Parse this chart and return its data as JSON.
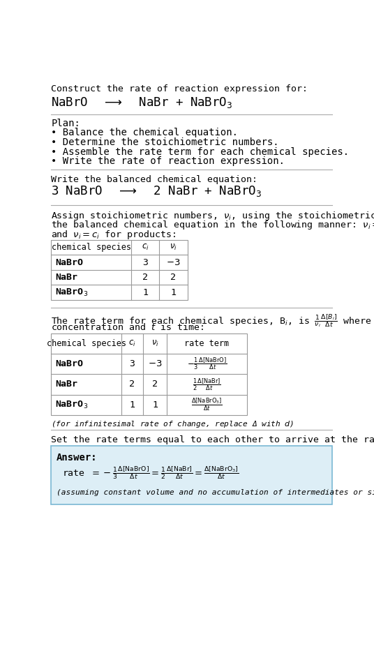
{
  "bg_color": "#ffffff",
  "title_line1": "Construct the rate of reaction expression for:",
  "plan_header": "Plan:",
  "plan_bullets": [
    "• Balance the chemical equation.",
    "• Determine the stoichiometric numbers.",
    "• Assemble the rate term for each chemical species.",
    "• Write the rate of reaction expression."
  ],
  "balanced_header": "Write the balanced chemical equation:",
  "stoich_intro_parts": [
    "Assign stoichiometric numbers, $\\nu_i$, using the stoichiometric coefficients, $c_i$, from",
    "the balanced chemical equation in the following manner: $\\nu_i = -c_i$ for reactants",
    "and $\\nu_i = c_i$ for products:"
  ],
  "table1_headers": [
    "chemical species",
    "$c_i$",
    "$\\nu_i$"
  ],
  "table1_col1_italic": [
    false,
    true,
    true
  ],
  "table1_rows": [
    [
      "NaBrO",
      "3",
      "$-3$"
    ],
    [
      "NaBr",
      "2",
      "2"
    ],
    [
      "NaBrO$_3$",
      "1",
      "1"
    ]
  ],
  "rate_intro_parts": [
    "The rate term for each chemical species, B$_i$, is $\\frac{1}{\\nu_i}\\frac{\\Delta[B_i]}{\\Delta t}$ where [B$_i$] is the amount",
    "concentration and $t$ is time:"
  ],
  "table2_headers": [
    "chemical species",
    "$c_i$",
    "$\\nu_i$",
    "rate term"
  ],
  "table2_rows": [
    [
      "NaBrO",
      "3",
      "$-3$",
      "$-\\frac{1}{3}\\frac{\\Delta[\\mathrm{NaBrO}]}{\\Delta t}$"
    ],
    [
      "NaBr",
      "2",
      "2",
      "$\\frac{1}{2}\\frac{\\Delta[\\mathrm{NaBr}]}{\\Delta t}$"
    ],
    [
      "NaBrO$_3$",
      "1",
      "1",
      "$\\frac{\\Delta[\\mathrm{NaBrO_3}]}{\\Delta t}$"
    ]
  ],
  "infinitesimal_note": "(for infinitesimal rate of change, replace Δ with $d$)",
  "set_equal_text": "Set the rate terms equal to each other to arrive at the rate expression:",
  "answer_box_bg": "#ddeef6",
  "answer_box_border": "#7ab8d4",
  "answer_label": "Answer:",
  "answer_note": "(assuming constant volume and no accumulation of intermediates or side products)",
  "hline_color": "#aaaaaa",
  "table_border_color": "#999999",
  "text_color": "#000000",
  "mono_font": "DejaVu Sans Mono",
  "serif_font": "DejaVu Serif"
}
